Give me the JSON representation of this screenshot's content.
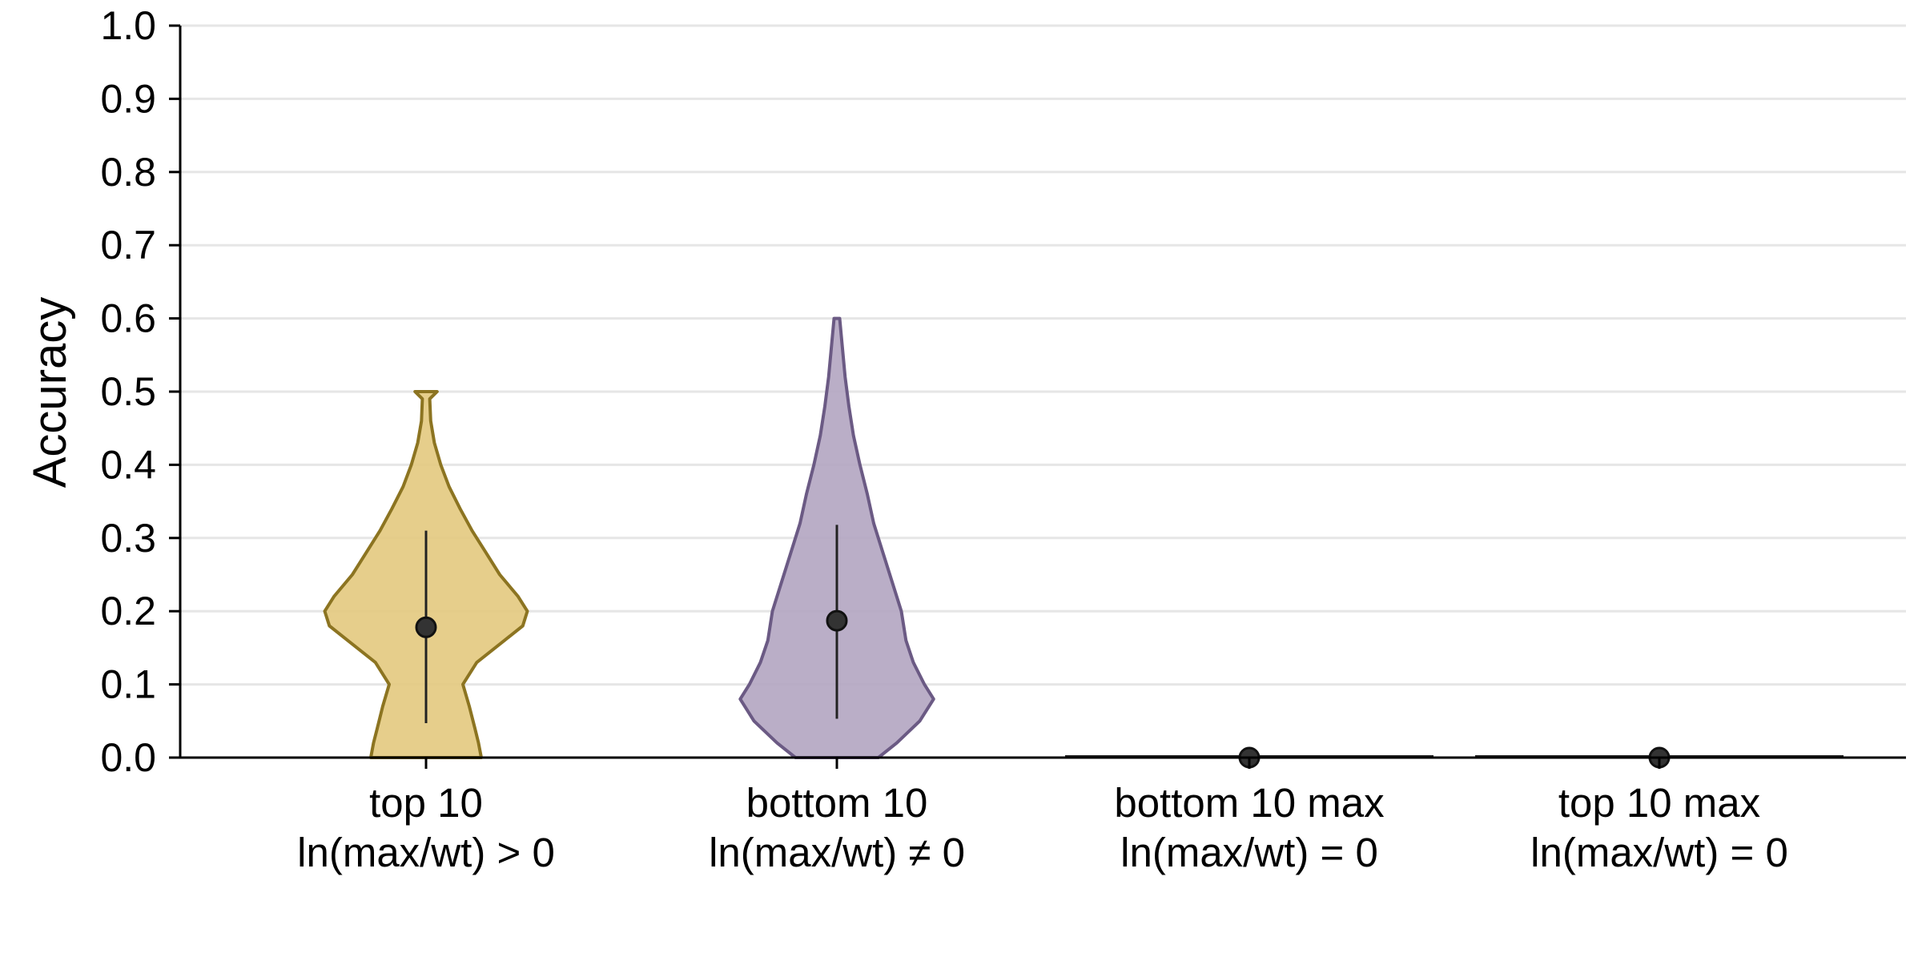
{
  "chart_data": {
    "type": "violin",
    "ylabel": "Accuracy",
    "ylim": [
      0,
      1
    ],
    "yticks": [
      "0.0",
      "0.1",
      "0.2",
      "0.3",
      "0.4",
      "0.5",
      "0.6",
      "0.7",
      "0.8",
      "0.9",
      "1.0"
    ],
    "grid": "horizontal",
    "categories": [
      {
        "label_line1": "top 10",
        "label_line2": "ln(max/wt) > 0",
        "color": "#e3c97e",
        "edge_color": "#8c7421",
        "mean": 0.178,
        "ci": [
          0.047,
          0.31
        ],
        "density": [
          [
            0.0,
            0.06
          ],
          [
            0.02,
            0.057
          ],
          [
            0.04,
            0.053
          ],
          [
            0.07,
            0.047
          ],
          [
            0.1,
            0.04
          ],
          [
            0.13,
            0.055
          ],
          [
            0.16,
            0.085
          ],
          [
            0.18,
            0.105
          ],
          [
            0.2,
            0.11
          ],
          [
            0.22,
            0.1
          ],
          [
            0.25,
            0.08
          ],
          [
            0.28,
            0.065
          ],
          [
            0.31,
            0.05
          ],
          [
            0.34,
            0.037
          ],
          [
            0.37,
            0.025
          ],
          [
            0.4,
            0.016
          ],
          [
            0.43,
            0.009
          ],
          [
            0.46,
            0.005
          ],
          [
            0.49,
            0.004
          ],
          [
            0.5,
            0.012
          ]
        ]
      },
      {
        "label_line1": "bottom 10",
        "label_line2": "ln(max/wt) ≠ 0",
        "color": "#b2a5c1",
        "edge_color": "#6b5a84",
        "mean": 0.187,
        "ci": [
          0.053,
          0.318
        ],
        "density": [
          [
            0.0,
            0.045
          ],
          [
            0.02,
            0.065
          ],
          [
            0.05,
            0.09
          ],
          [
            0.08,
            0.105
          ],
          [
            0.1,
            0.095
          ],
          [
            0.13,
            0.083
          ],
          [
            0.16,
            0.075
          ],
          [
            0.2,
            0.07
          ],
          [
            0.24,
            0.06
          ],
          [
            0.28,
            0.05
          ],
          [
            0.32,
            0.04
          ],
          [
            0.36,
            0.033
          ],
          [
            0.4,
            0.025
          ],
          [
            0.44,
            0.018
          ],
          [
            0.48,
            0.013
          ],
          [
            0.52,
            0.009
          ],
          [
            0.56,
            0.006
          ],
          [
            0.6,
            0.003
          ]
        ]
      },
      {
        "label_line1": "bottom 10 max",
        "label_line2": "ln(max/wt) = 0",
        "color": "#555555",
        "edge_color": "#222222",
        "mean": 0.0,
        "ci": [
          0.0,
          0.0
        ],
        "density": "flat"
      },
      {
        "label_line1": "top 10 max",
        "label_line2": "ln(max/wt) = 0",
        "color": "#555555",
        "edge_color": "#222222",
        "mean": 0.0,
        "ci": [
          0.0,
          0.0
        ],
        "density": "flat"
      }
    ]
  }
}
